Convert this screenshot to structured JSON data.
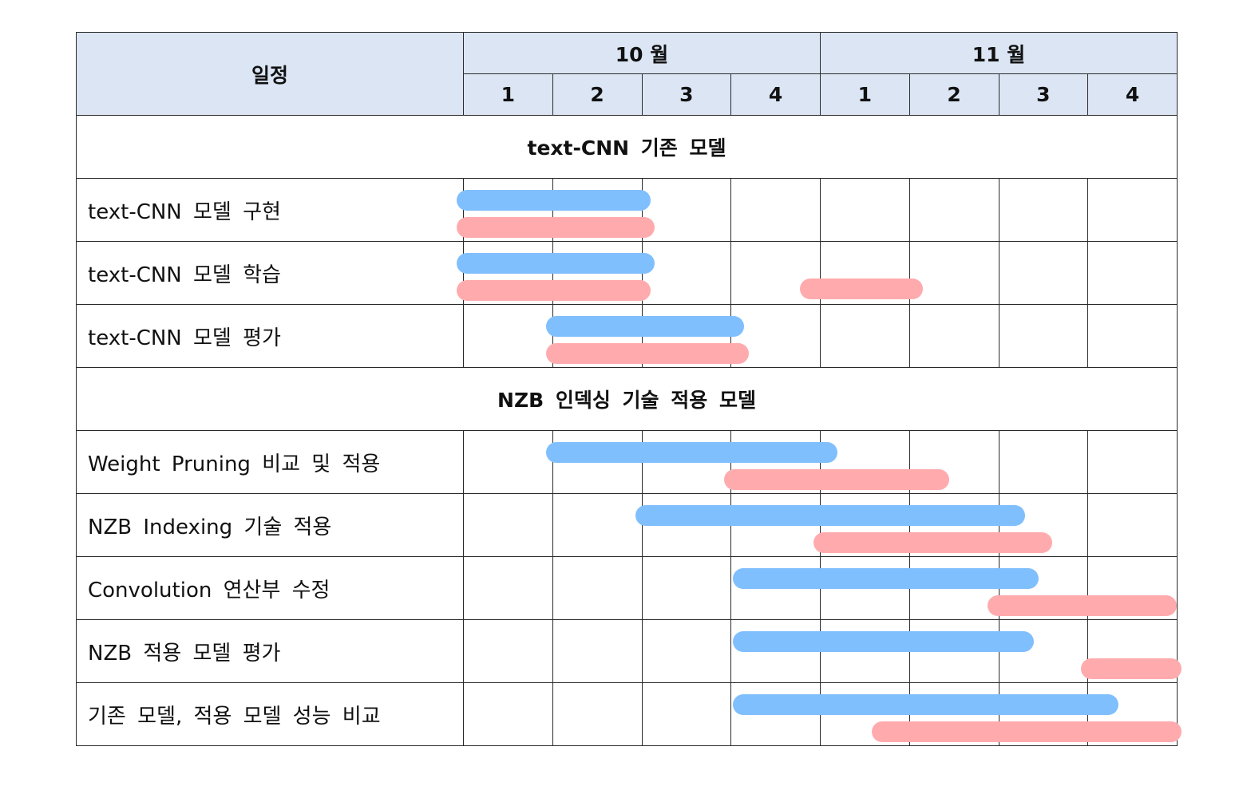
{
  "header": {
    "schedule_label": "일정",
    "months": [
      {
        "label": "10 월",
        "weeks": [
          "1",
          "2",
          "3",
          "4"
        ]
      },
      {
        "label": "11 월",
        "weeks": [
          "1",
          "2",
          "3",
          "4"
        ]
      }
    ]
  },
  "sections": [
    {
      "title": "text-CNN 기존 모델",
      "tasks": [
        {
          "label": "text-CNN 모델 구현",
          "planned": [
            0.0,
            2.1
          ],
          "actual": [
            0.0,
            2.15
          ]
        },
        {
          "label": "text-CNN 모델 학습",
          "planned": [
            0.0,
            2.15
          ],
          "actual": [
            0.0,
            2.1
          ],
          "actual_extra": [
            3.85,
            5.15
          ]
        },
        {
          "label": "text-CNN 모델 평가",
          "planned": [
            1.0,
            3.15
          ],
          "actual": [
            1.0,
            3.2
          ]
        }
      ]
    },
    {
      "title": "NZB 인덱싱 기술 적용 모델",
      "tasks": [
        {
          "label": "Weight Pruning 비교 및 적용",
          "planned": [
            1.0,
            4.2
          ],
          "actual": [
            3.0,
            5.45
          ]
        },
        {
          "label": "NZB Indexing 기술 적용",
          "planned": [
            2.0,
            6.3
          ],
          "actual": [
            4.0,
            6.6
          ]
        },
        {
          "label": "Convolution 연산부 수정",
          "planned": [
            3.1,
            6.45
          ],
          "actual": [
            5.95,
            8.0
          ]
        },
        {
          "label": "NZB 적용 모델 평가",
          "planned": [
            3.1,
            6.4
          ],
          "actual": [
            7.0,
            8.05
          ]
        },
        {
          "label": "기존 모델, 적용 모델 성능 비교",
          "planned": [
            3.1,
            7.35
          ],
          "actual": [
            4.65,
            8.05
          ]
        }
      ]
    }
  ],
  "legend_colors": {
    "planned": "#80bffe",
    "actual": "#ffabad"
  }
}
